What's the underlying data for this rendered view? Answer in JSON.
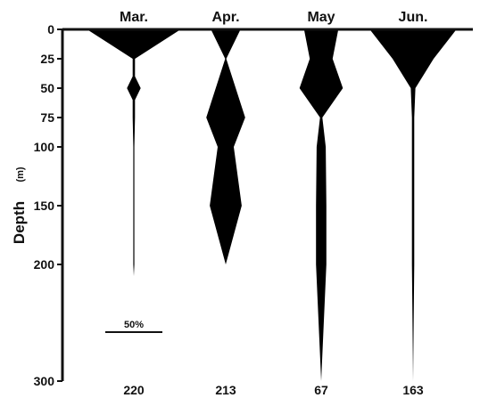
{
  "chart_data": {
    "type": "kite",
    "ylabel": "Depth",
    "yunit": "(m)",
    "ylim": [
      0,
      300
    ],
    "yticks": [
      0,
      25,
      50,
      75,
      100,
      150,
      200,
      300
    ],
    "scale_bar_label": "50%",
    "scale_bar_percent": 50,
    "series": [
      {
        "name": "Mar.",
        "count": "220",
        "profile": [
          {
            "depth": 0,
            "percent": 82
          },
          {
            "depth": 25,
            "percent": 2
          },
          {
            "depth": 40,
            "percent": 2
          },
          {
            "depth": 50,
            "percent": 12
          },
          {
            "depth": 60,
            "percent": 2
          },
          {
            "depth": 75,
            "percent": 2
          },
          {
            "depth": 100,
            "percent": 1
          },
          {
            "depth": 150,
            "percent": 1
          },
          {
            "depth": 200,
            "percent": 1
          },
          {
            "depth": 210,
            "percent": 0
          }
        ]
      },
      {
        "name": "Apr.",
        "count": "213",
        "profile": [
          {
            "depth": 0,
            "percent": 26
          },
          {
            "depth": 25,
            "percent": 1
          },
          {
            "depth": 75,
            "percent": 34
          },
          {
            "depth": 100,
            "percent": 14
          },
          {
            "depth": 150,
            "percent": 28
          },
          {
            "depth": 200,
            "percent": 0
          }
        ]
      },
      {
        "name": "May",
        "count": "67",
        "profile": [
          {
            "depth": 0,
            "percent": 30
          },
          {
            "depth": 25,
            "percent": 20
          },
          {
            "depth": 50,
            "percent": 38
          },
          {
            "depth": 75,
            "percent": 2
          },
          {
            "depth": 100,
            "percent": 8
          },
          {
            "depth": 150,
            "percent": 9
          },
          {
            "depth": 200,
            "percent": 9
          },
          {
            "depth": 300,
            "percent": 0
          }
        ]
      },
      {
        "name": "Jun.",
        "count": "163",
        "profile": [
          {
            "depth": 0,
            "percent": 76
          },
          {
            "depth": 25,
            "percent": 36
          },
          {
            "depth": 50,
            "percent": 4
          },
          {
            "depth": 75,
            "percent": 2
          },
          {
            "depth": 100,
            "percent": 2
          },
          {
            "depth": 200,
            "percent": 2
          },
          {
            "depth": 300,
            "percent": 0
          }
        ]
      }
    ]
  },
  "colors": {
    "fill": "#000000",
    "axis": "#111111",
    "background": "#ffffff"
  }
}
